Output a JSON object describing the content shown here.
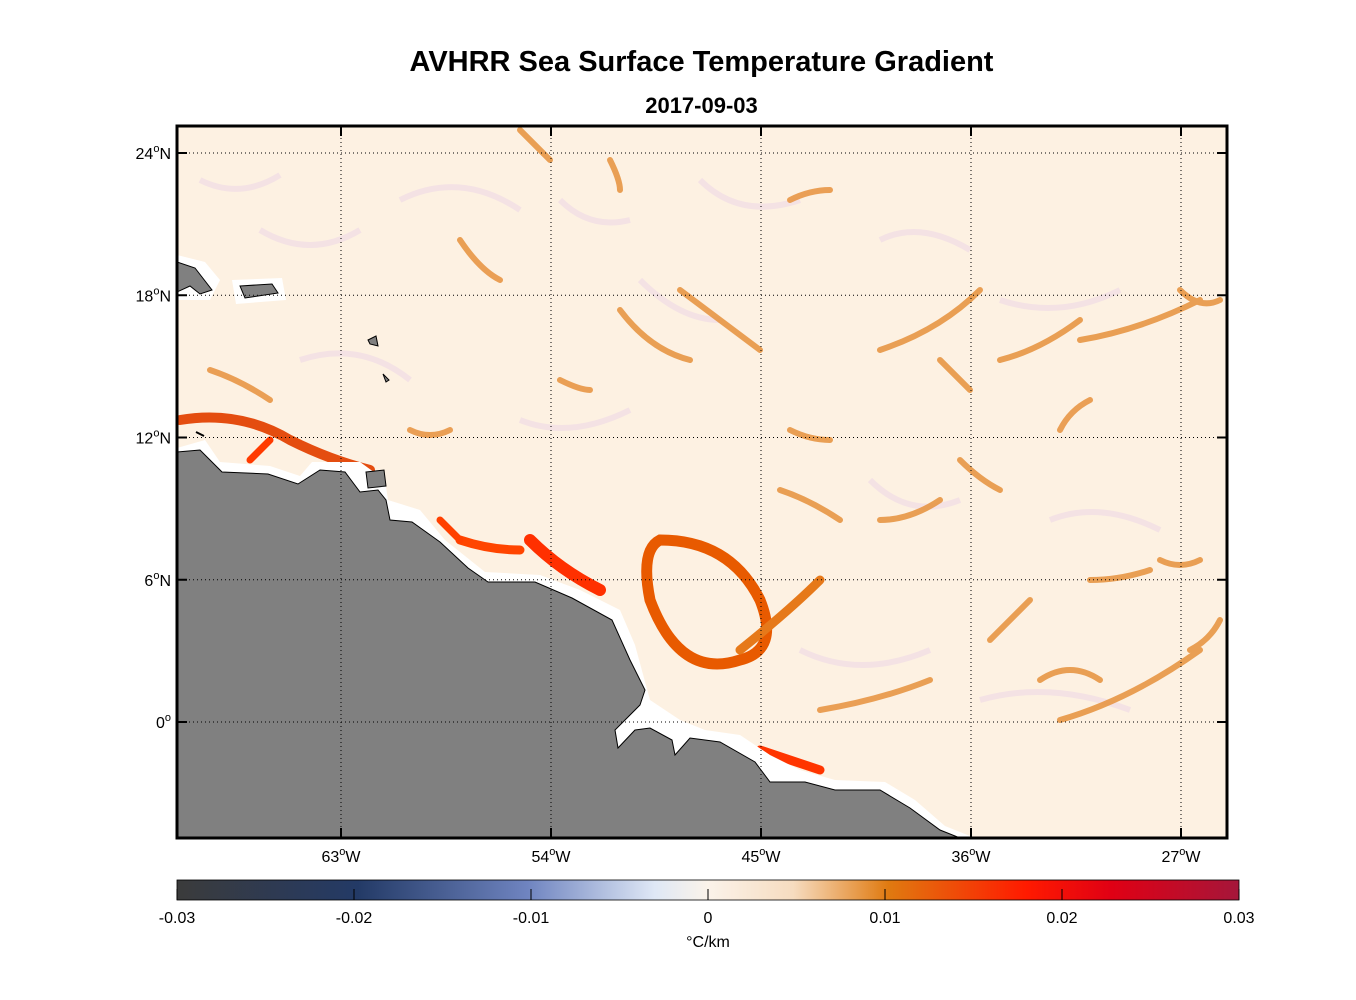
{
  "header": {
    "title": "AVHRR Sea Surface Temperature Gradient",
    "date": "2017-09-03"
  },
  "map": {
    "lon_range": [
      -70,
      -25
    ],
    "lat_range": [
      -5,
      25
    ],
    "lon_ticks": [
      {
        "value": -63,
        "label": "63",
        "suffix": "W"
      },
      {
        "value": -54,
        "label": "54",
        "suffix": "W"
      },
      {
        "value": -45,
        "label": "45",
        "suffix": "W"
      },
      {
        "value": -36,
        "label": "36",
        "suffix": "W"
      },
      {
        "value": -27,
        "label": "27",
        "suffix": "W"
      }
    ],
    "lat_ticks": [
      {
        "value": 24,
        "label": "24",
        "suffix": "N"
      },
      {
        "value": 18,
        "label": "18",
        "suffix": "N"
      },
      {
        "value": 12,
        "label": "12",
        "suffix": "N"
      },
      {
        "value": 6,
        "label": "6",
        "suffix": "N"
      },
      {
        "value": 0,
        "label": "0",
        "suffix": ""
      }
    ],
    "degree_symbol": "o",
    "land_color": "#808080",
    "background_color": "#fdf1e2"
  },
  "colorbar": {
    "ticks": [
      "-0.03",
      "-0.02",
      "-0.01",
      "0",
      "0.01",
      "0.02",
      "0.03"
    ],
    "unit_label": "°C/km",
    "colors": [
      "#3b3b3b",
      "#233a66",
      "#6f84c0",
      "#dfe8f5",
      "#fbeedd",
      "#e07a10",
      "#ff1a00",
      "#a5163a"
    ]
  }
}
